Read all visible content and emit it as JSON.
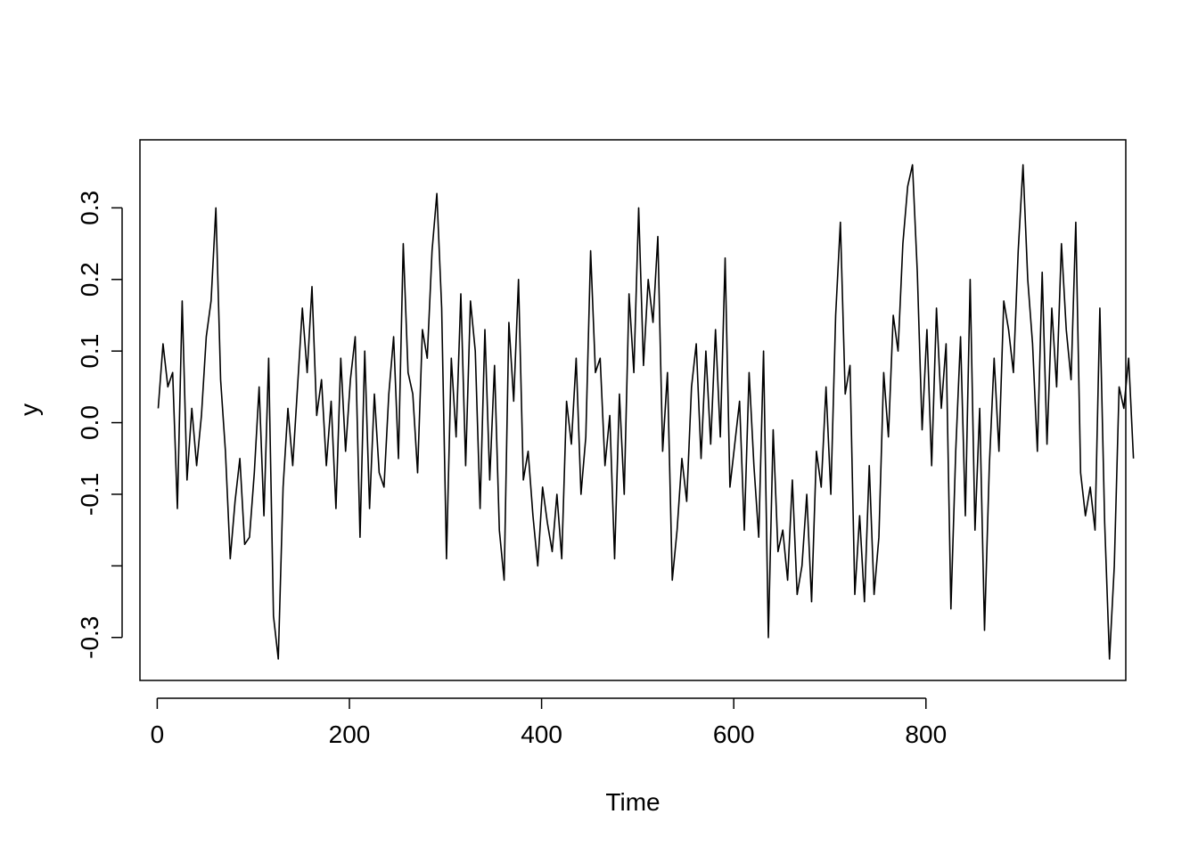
{
  "chart_data": {
    "type": "line",
    "title": "",
    "xlabel": "Time",
    "ylabel": "y",
    "xlim": [
      -18,
      1008
    ],
    "ylim": [
      -0.36,
      0.395
    ],
    "xticks": [
      0,
      200,
      400,
      600,
      800
    ],
    "xtick_labels": [
      "0",
      "200",
      "400",
      "600",
      "800"
    ],
    "yticks": [
      -0.3,
      -0.2,
      -0.1,
      0.0,
      0.1,
      0.2,
      0.3
    ],
    "ytick_labels": [
      "-0.3",
      "",
      "-0.1",
      "0.0",
      "0.1",
      "0.2",
      "0.3"
    ],
    "grid": false,
    "legend": "none",
    "line_color": "#000000",
    "series": [
      {
        "x_start": 1,
        "x_step": 5,
        "values": [
          0.02,
          0.11,
          0.05,
          0.07,
          -0.12,
          0.17,
          -0.08,
          0.02,
          -0.06,
          0.01,
          0.12,
          0.17,
          0.3,
          0.06,
          -0.04,
          -0.19,
          -0.11,
          -0.05,
          -0.17,
          -0.16,
          -0.07,
          0.05,
          -0.13,
          0.09,
          -0.27,
          -0.33,
          -0.09,
          0.02,
          -0.06,
          0.05,
          0.16,
          0.07,
          0.19,
          0.01,
          0.06,
          -0.06,
          0.03,
          -0.12,
          0.09,
          -0.04,
          0.06,
          0.12,
          -0.16,
          0.1,
          -0.12,
          0.04,
          -0.07,
          -0.09,
          0.04,
          0.12,
          -0.05,
          0.25,
          0.07,
          0.04,
          -0.07,
          0.13,
          0.09,
          0.24,
          0.32,
          0.16,
          -0.19,
          0.09,
          -0.02,
          0.18,
          -0.06,
          0.17,
          0.1,
          -0.12,
          0.13,
          -0.08,
          0.08,
          -0.15,
          -0.22,
          0.14,
          0.03,
          0.2,
          -0.08,
          -0.04,
          -0.13,
          -0.2,
          -0.09,
          -0.14,
          -0.18,
          -0.1,
          -0.19,
          0.03,
          -0.03,
          0.09,
          -0.1,
          -0.02,
          0.24,
          0.07,
          0.09,
          -0.06,
          0.01,
          -0.19,
          0.04,
          -0.1,
          0.18,
          0.07,
          0.3,
          0.08,
          0.2,
          0.14,
          0.26,
          -0.04,
          0.07,
          -0.22,
          -0.15,
          -0.05,
          -0.11,
          0.05,
          0.11,
          -0.05,
          0.1,
          -0.03,
          0.13,
          -0.02,
          0.23,
          -0.09,
          -0.03,
          0.03,
          -0.15,
          0.07,
          -0.06,
          -0.16,
          0.1,
          -0.3,
          -0.01,
          -0.18,
          -0.15,
          -0.22,
          -0.08,
          -0.24,
          -0.2,
          -0.1,
          -0.25,
          -0.04,
          -0.09,
          0.05,
          -0.1,
          0.15,
          0.28,
          0.04,
          0.08,
          -0.24,
          -0.13,
          -0.25,
          -0.06,
          -0.24,
          -0.16,
          0.07,
          -0.02,
          0.15,
          0.1,
          0.25,
          0.33,
          0.36,
          0.21,
          -0.01,
          0.13,
          -0.06,
          0.16,
          0.02,
          0.11,
          -0.26,
          -0.04,
          0.12,
          -0.13,
          0.2,
          -0.15,
          0.02,
          -0.29,
          -0.06,
          0.09,
          -0.04,
          0.17,
          0.13,
          0.07,
          0.24,
          0.36,
          0.2,
          0.11,
          -0.04,
          0.21,
          -0.03,
          0.16,
          0.05,
          0.25,
          0.13,
          0.06,
          0.28,
          -0.07,
          -0.13,
          -0.09,
          -0.15,
          0.16,
          -0.14,
          -0.33,
          -0.2,
          0.05,
          0.02,
          0.09,
          -0.05
        ]
      }
    ]
  }
}
